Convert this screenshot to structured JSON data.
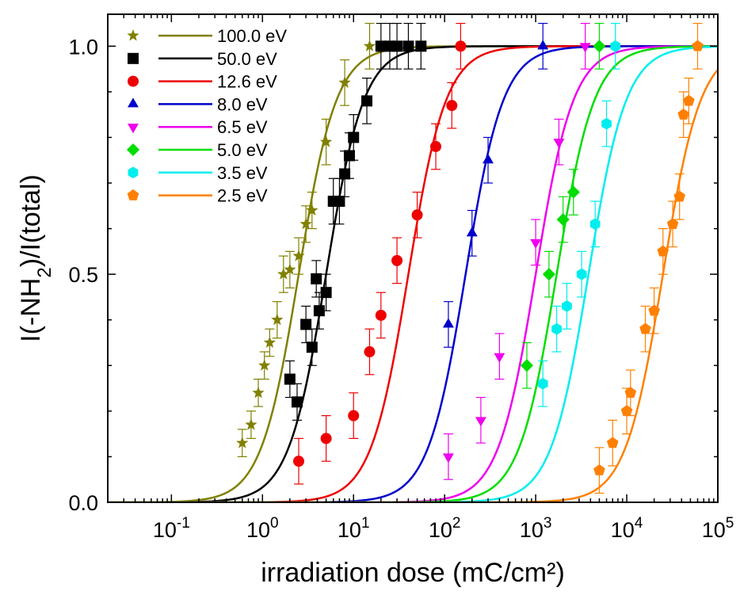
{
  "chart_data": {
    "type": "scatter",
    "xlabel": "irradiation dose (mC/cm²)",
    "ylabel_parts": {
      "pre": "I(-NH",
      "sub": "2",
      "post": ")/I(total)"
    },
    "xscale": "log",
    "xlim": [
      0.02,
      100000
    ],
    "ylim": [
      0.0,
      1.07
    ],
    "x_ticks": [
      {
        "value": 0.1,
        "base": "10",
        "exp": "-1"
      },
      {
        "value": 1,
        "base": "10",
        "exp": "0"
      },
      {
        "value": 10,
        "base": "10",
        "exp": "1"
      },
      {
        "value": 100,
        "base": "10",
        "exp": "2"
      },
      {
        "value": 1000,
        "base": "10",
        "exp": "3"
      },
      {
        "value": 10000,
        "base": "10",
        "exp": "4"
      },
      {
        "value": 100000,
        "base": "10",
        "exp": "5"
      }
    ],
    "y_ticks": [
      {
        "value": 0.0,
        "label": "0.0"
      },
      {
        "value": 0.5,
        "label": "0.5"
      },
      {
        "value": 1.0,
        "label": "1.0"
      }
    ],
    "legend_position": "top-left",
    "series": [
      {
        "name": "100.0 eV",
        "color": "#808000",
        "marker": "star",
        "d50": 2.5,
        "points": [
          [
            0.6,
            0.13,
            0.03
          ],
          [
            0.75,
            0.17,
            0.03
          ],
          [
            0.9,
            0.24,
            0.03
          ],
          [
            1.05,
            0.3,
            0.03
          ],
          [
            1.2,
            0.35,
            0.03
          ],
          [
            1.45,
            0.4,
            0.04
          ],
          [
            1.7,
            0.5,
            0.04
          ],
          [
            2.0,
            0.51,
            0.04
          ],
          [
            2.5,
            0.54,
            0.04
          ],
          [
            3.0,
            0.61,
            0.04
          ],
          [
            3.5,
            0.64,
            0.04
          ],
          [
            5.0,
            0.79,
            0.05
          ],
          [
            8.0,
            0.92,
            0.05
          ],
          [
            15.0,
            1.0,
            0.05
          ]
        ]
      },
      {
        "name": "50.0 eV",
        "color": "#000000",
        "marker": "square",
        "d50": 5.0,
        "points": [
          [
            2.0,
            0.27,
            0.04
          ],
          [
            2.4,
            0.22,
            0.04
          ],
          [
            3.0,
            0.39,
            0.04
          ],
          [
            3.5,
            0.34,
            0.04
          ],
          [
            3.9,
            0.49,
            0.04
          ],
          [
            4.2,
            0.42,
            0.04
          ],
          [
            5.0,
            0.46,
            0.04
          ],
          [
            6.0,
            0.66,
            0.05
          ],
          [
            7.0,
            0.66,
            0.05
          ],
          [
            8.0,
            0.72,
            0.05
          ],
          [
            9.0,
            0.76,
            0.05
          ],
          [
            10.0,
            0.8,
            0.05
          ],
          [
            14.0,
            0.88,
            0.05
          ],
          [
            20.0,
            1.0,
            0.05
          ],
          [
            25.0,
            1.0,
            0.05
          ],
          [
            30.0,
            1.0,
            0.05
          ],
          [
            40.0,
            1.0,
            0.05
          ],
          [
            55.0,
            1.0,
            0.05
          ]
        ]
      },
      {
        "name": "12.6 eV",
        "color": "#ee0000",
        "marker": "circle",
        "d50": 40,
        "points": [
          [
            2.5,
            0.09,
            0.05
          ],
          [
            5.0,
            0.14,
            0.05
          ],
          [
            10.0,
            0.19,
            0.05
          ],
          [
            15.0,
            0.33,
            0.05
          ],
          [
            20.0,
            0.41,
            0.05
          ],
          [
            30.0,
            0.53,
            0.05
          ],
          [
            50.0,
            0.63,
            0.05
          ],
          [
            80.0,
            0.78,
            0.05
          ],
          [
            120.0,
            0.87,
            0.05
          ],
          [
            150.0,
            1.0,
            0.05
          ]
        ]
      },
      {
        "name": "8.0 eV",
        "color": "#0000cc",
        "marker": "triangle-up",
        "d50": 170,
        "points": [
          [
            110.0,
            0.39,
            0.05
          ],
          [
            200.0,
            0.59,
            0.05
          ],
          [
            300.0,
            0.75,
            0.05
          ],
          [
            1200.0,
            1.0,
            0.05
          ]
        ]
      },
      {
        "name": "6.5 eV",
        "color": "#ee00ee",
        "marker": "triangle-down",
        "d50": 1000,
        "points": [
          [
            110.0,
            0.1,
            0.05
          ],
          [
            250.0,
            0.18,
            0.05
          ],
          [
            400.0,
            0.32,
            0.05
          ],
          [
            1000.0,
            0.57,
            0.05
          ],
          [
            1800.0,
            0.79,
            0.05
          ],
          [
            3500.0,
            1.0,
            0.05
          ]
        ]
      },
      {
        "name": "5.0 eV",
        "color": "#00dd00",
        "marker": "diamond",
        "d50": 1700,
        "points": [
          [
            800.0,
            0.3,
            0.05
          ],
          [
            1400.0,
            0.5,
            0.05
          ],
          [
            2000.0,
            0.62,
            0.05
          ],
          [
            2600.0,
            0.68,
            0.05
          ],
          [
            5000.0,
            1.0,
            0.05
          ]
        ]
      },
      {
        "name": "3.5 eV",
        "color": "#00eeee",
        "marker": "hexagon",
        "d50": 3800,
        "points": [
          [
            1200.0,
            0.26,
            0.05
          ],
          [
            1700.0,
            0.38,
            0.05
          ],
          [
            2200.0,
            0.43,
            0.05
          ],
          [
            3200.0,
            0.5,
            0.05
          ],
          [
            4500.0,
            0.61,
            0.05
          ],
          [
            6000.0,
            0.83,
            0.05
          ],
          [
            7500.0,
            1.0,
            0.05
          ]
        ]
      },
      {
        "name": "2.5 eV",
        "color": "#ff8000",
        "marker": "pentagon",
        "d50": 25000,
        "points": [
          [
            5000.0,
            0.07,
            0.05
          ],
          [
            7000.0,
            0.13,
            0.05
          ],
          [
            10000.0,
            0.2,
            0.05
          ],
          [
            11000.0,
            0.24,
            0.05
          ],
          [
            16000.0,
            0.38,
            0.05
          ],
          [
            20000.0,
            0.42,
            0.05
          ],
          [
            25000.0,
            0.55,
            0.05
          ],
          [
            32000.0,
            0.61,
            0.05
          ],
          [
            38000.0,
            0.67,
            0.05
          ],
          [
            42000.0,
            0.85,
            0.05
          ],
          [
            48000.0,
            0.88,
            0.05
          ],
          [
            60000.0,
            1.0,
            0.05
          ]
        ]
      }
    ]
  }
}
